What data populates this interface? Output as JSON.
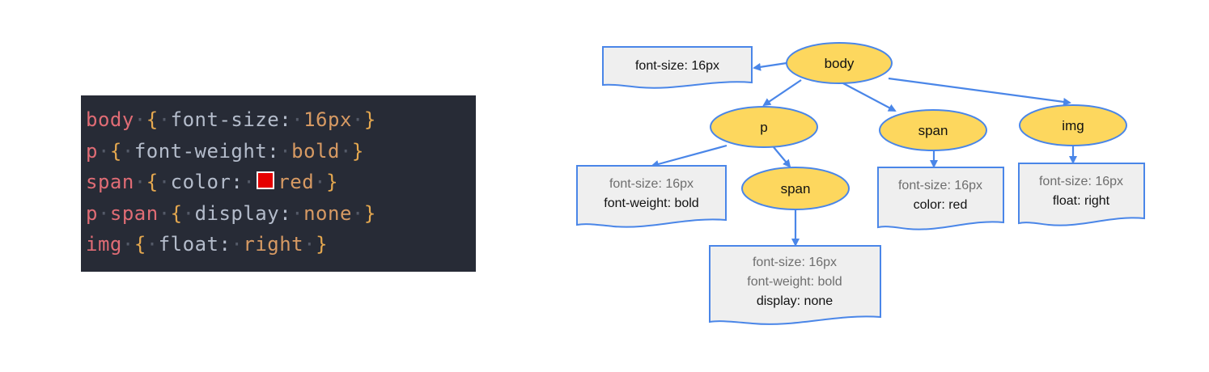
{
  "code": {
    "lines": [
      [
        {
          "cls": "sel",
          "t": "body"
        },
        {
          "cls": "dot",
          "t": "·"
        },
        {
          "cls": "brace",
          "t": "{"
        },
        {
          "cls": "dot",
          "t": "·"
        },
        {
          "cls": "prop",
          "t": "font-size:"
        },
        {
          "cls": "dot",
          "t": "·"
        },
        {
          "cls": "val",
          "t": "16px"
        },
        {
          "cls": "dot",
          "t": "·"
        },
        {
          "cls": "brace",
          "t": "}"
        }
      ],
      [
        {
          "cls": "sel",
          "t": "p"
        },
        {
          "cls": "dot",
          "t": "·"
        },
        {
          "cls": "brace",
          "t": "{"
        },
        {
          "cls": "dot",
          "t": "·"
        },
        {
          "cls": "prop",
          "t": "font-weight:"
        },
        {
          "cls": "dot",
          "t": "·"
        },
        {
          "cls": "val",
          "t": "bold"
        },
        {
          "cls": "dot",
          "t": "·"
        },
        {
          "cls": "brace",
          "t": "}"
        }
      ],
      [
        {
          "cls": "sel",
          "t": "span"
        },
        {
          "cls": "dot",
          "t": "·"
        },
        {
          "cls": "brace",
          "t": "{"
        },
        {
          "cls": "dot",
          "t": "·"
        },
        {
          "cls": "prop",
          "t": "color:"
        },
        {
          "cls": "dot",
          "t": "·"
        },
        {
          "swatch": "#e60000"
        },
        {
          "cls": "val",
          "t": "red"
        },
        {
          "cls": "dot",
          "t": "·"
        },
        {
          "cls": "brace",
          "t": "}"
        }
      ],
      [
        {
          "cls": "sel",
          "t": "p"
        },
        {
          "cls": "dot",
          "t": "·"
        },
        {
          "cls": "sel",
          "t": "span"
        },
        {
          "cls": "dot",
          "t": "·"
        },
        {
          "cls": "brace",
          "t": "{"
        },
        {
          "cls": "dot",
          "t": "·"
        },
        {
          "cls": "prop",
          "t": "display:"
        },
        {
          "cls": "dot",
          "t": "·"
        },
        {
          "cls": "val",
          "t": "none"
        },
        {
          "cls": "dot",
          "t": "·"
        },
        {
          "cls": "brace",
          "t": "}"
        }
      ],
      [
        {
          "cls": "sel",
          "t": "img"
        },
        {
          "cls": "dot",
          "t": "·"
        },
        {
          "cls": "brace",
          "t": "{"
        },
        {
          "cls": "dot",
          "t": "·"
        },
        {
          "cls": "prop",
          "t": "float:"
        },
        {
          "cls": "dot",
          "t": "·"
        },
        {
          "cls": "val",
          "t": "right"
        },
        {
          "cls": "dot",
          "t": "·"
        },
        {
          "cls": "brace",
          "t": "}"
        }
      ]
    ]
  },
  "tree": {
    "colors": {
      "node_fill": "#fdd75e",
      "stroke": "#4a86e8",
      "box_fill": "#efefef",
      "inherited_text": "#6e6e6e"
    },
    "nodes": {
      "body": "body",
      "p": "p",
      "span_top": "span",
      "img": "img",
      "span_nested": "span"
    },
    "boxes": {
      "body": {
        "own": [
          "font-size: 16px"
        ]
      },
      "p": {
        "inherited": [
          "font-size: 16px"
        ],
        "own": [
          "font-weight: bold"
        ]
      },
      "span_nested": {
        "inherited": [
          "font-size: 16px",
          "font-weight: bold"
        ],
        "own": [
          "display: none"
        ]
      },
      "span_top": {
        "inherited": [
          "font-size: 16px"
        ],
        "own": [
          "color: red"
        ]
      },
      "img": {
        "inherited": [
          "font-size: 16px"
        ],
        "own": [
          "float: right"
        ]
      }
    }
  }
}
